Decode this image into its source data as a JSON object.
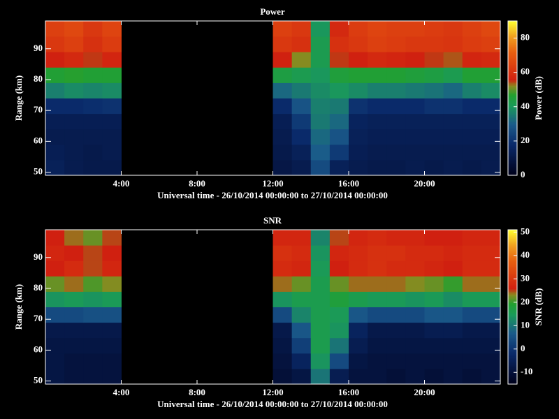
{
  "chart_data": [
    {
      "type": "heatmap",
      "title": "Power",
      "xlabel": "Universal time - 26/10/2014 00:00:00 to 27/10/2014 00:00:00",
      "ylabel": "Range (km)",
      "colorbar_label": "Power (dB)",
      "xlim": [
        0,
        24
      ],
      "xticks": [
        {
          "value": 4,
          "label": "4:00"
        },
        {
          "value": 8,
          "label": "8:00"
        },
        {
          "value": 12,
          "label": "12:00"
        },
        {
          "value": 16,
          "label": "16:00"
        },
        {
          "value": 20,
          "label": "20:00"
        }
      ],
      "ylim": [
        49,
        99
      ],
      "yticks": [
        50,
        60,
        70,
        80,
        90
      ],
      "clim": [
        0,
        90
      ],
      "cticks": [
        0,
        20,
        40,
        60,
        80
      ],
      "colormap": [
        {
          "at": 0,
          "color": "#00001a"
        },
        {
          "at": 0.2,
          "color": "#0a2a6a"
        },
        {
          "at": 0.33,
          "color": "#1a5a8a"
        },
        {
          "at": 0.45,
          "color": "#1a9a5a"
        },
        {
          "at": 0.52,
          "color": "#22a030"
        },
        {
          "at": 0.58,
          "color": "#8a8a20"
        },
        {
          "at": 0.62,
          "color": "#d02010"
        },
        {
          "at": 0.8,
          "color": "#e86010"
        },
        {
          "at": 0.9,
          "color": "#f0a020"
        },
        {
          "at": 1,
          "color": "#ffff30"
        }
      ],
      "xbins": [
        0,
        1,
        2,
        3,
        4,
        5,
        6,
        7,
        8,
        9,
        10,
        11,
        12,
        13,
        14,
        15,
        16,
        17,
        18,
        19,
        20,
        21,
        22,
        23,
        24
      ],
      "ybins": [
        49,
        54,
        59,
        64,
        69,
        74,
        79,
        84,
        89,
        94,
        99
      ],
      "values": [
        [
          14,
          12,
          11,
          11,
          null,
          null,
          null,
          null,
          null,
          null,
          null,
          null,
          10,
          12,
          26,
          14,
          12,
          11,
          11,
          12,
          11,
          12,
          11,
          12
        ],
        [
          13,
          12,
          11,
          12,
          null,
          null,
          null,
          null,
          null,
          null,
          null,
          null,
          11,
          14,
          30,
          22,
          13,
          12,
          12,
          12,
          12,
          12,
          12,
          12
        ],
        [
          12,
          12,
          12,
          12,
          null,
          null,
          null,
          null,
          null,
          null,
          null,
          null,
          12,
          18,
          32,
          28,
          14,
          13,
          13,
          13,
          13,
          13,
          13,
          13
        ],
        [
          13,
          13,
          13,
          13,
          null,
          null,
          null,
          null,
          null,
          null,
          null,
          null,
          13,
          22,
          35,
          32,
          15,
          14,
          14,
          14,
          14,
          14,
          14,
          14
        ],
        [
          18,
          18,
          19,
          20,
          null,
          null,
          null,
          null,
          null,
          null,
          null,
          null,
          18,
          28,
          36,
          35,
          20,
          18,
          18,
          18,
          20,
          20,
          18,
          18
        ],
        [
          36,
          38,
          37,
          38,
          null,
          null,
          null,
          null,
          null,
          null,
          null,
          null,
          32,
          35,
          38,
          40,
          38,
          36,
          36,
          35,
          34,
          32,
          36,
          38
        ],
        [
          46,
          47,
          46,
          46,
          null,
          null,
          null,
          null,
          null,
          null,
          null,
          null,
          44,
          42,
          40,
          45,
          46,
          46,
          46,
          45,
          44,
          42,
          46,
          46
        ],
        [
          56,
          58,
          55,
          57,
          null,
          null,
          null,
          null,
          null,
          null,
          null,
          null,
          56,
          52,
          42,
          55,
          56,
          58,
          57,
          56,
          55,
          54,
          57,
          58
        ],
        [
          62,
          64,
          60,
          63,
          null,
          null,
          null,
          null,
          null,
          null,
          null,
          null,
          62,
          60,
          42,
          60,
          62,
          64,
          63,
          62,
          62,
          61,
          63,
          64
        ],
        [
          64,
          66,
          62,
          65,
          null,
          null,
          null,
          null,
          null,
          null,
          null,
          null,
          64,
          62,
          40,
          58,
          63,
          65,
          64,
          64,
          63,
          62,
          64,
          66
        ]
      ]
    },
    {
      "type": "heatmap",
      "title": "SNR",
      "xlabel": "Universal time - 26/10/2014 00:00:00 to 27/10/2014 00:00:00",
      "ylabel": "Range (km)",
      "colorbar_label": "SNR (dB)",
      "xlim": [
        0,
        24
      ],
      "xticks": [
        {
          "value": 4,
          "label": "4:00"
        },
        {
          "value": 8,
          "label": "8:00"
        },
        {
          "value": 12,
          "label": "12:00"
        },
        {
          "value": 16,
          "label": "16:00"
        },
        {
          "value": 20,
          "label": "20:00"
        }
      ],
      "ylim": [
        49,
        99
      ],
      "yticks": [
        50,
        60,
        70,
        80,
        90
      ],
      "clim": [
        -15,
        51
      ],
      "cticks": [
        -10,
        0,
        10,
        20,
        30,
        40,
        50
      ],
      "colormap": [
        {
          "at": 0,
          "color": "#00001a"
        },
        {
          "at": 0.2,
          "color": "#0a2a6a"
        },
        {
          "at": 0.33,
          "color": "#1a5a8a"
        },
        {
          "at": 0.45,
          "color": "#1a9a5a"
        },
        {
          "at": 0.52,
          "color": "#22a030"
        },
        {
          "at": 0.58,
          "color": "#8a8a20"
        },
        {
          "at": 0.62,
          "color": "#d02010"
        },
        {
          "at": 0.8,
          "color": "#e86010"
        },
        {
          "at": 0.9,
          "color": "#f0a020"
        },
        {
          "at": 1,
          "color": "#ffff30"
        }
      ],
      "xbins": [
        0,
        1,
        2,
        3,
        4,
        5,
        6,
        7,
        8,
        9,
        10,
        11,
        12,
        13,
        14,
        15,
        16,
        17,
        18,
        19,
        20,
        21,
        22,
        23,
        24
      ],
      "ybins": [
        49,
        54,
        59,
        64,
        69,
        74,
        79,
        84,
        89,
        94,
        99
      ],
      "values": [
        [
          -8,
          -9,
          -9,
          -9,
          null,
          null,
          null,
          null,
          null,
          null,
          null,
          null,
          -10,
          -8,
          10,
          -6,
          -9,
          -9,
          -10,
          -9,
          -10,
          -9,
          -10,
          -9
        ],
        [
          -8,
          -9,
          -9,
          -9,
          null,
          null,
          null,
          null,
          null,
          null,
          null,
          null,
          -9,
          -4,
          14,
          4,
          -8,
          -9,
          -9,
          -9,
          -9,
          -9,
          -9,
          -9
        ],
        [
          -8,
          -8,
          -8,
          -8,
          null,
          null,
          null,
          null,
          null,
          null,
          null,
          null,
          -8,
          2,
          16,
          10,
          -6,
          -8,
          -8,
          -8,
          -8,
          -8,
          -8,
          -8
        ],
        [
          -7,
          -7,
          -7,
          -7,
          null,
          null,
          null,
          null,
          null,
          null,
          null,
          null,
          -7,
          6,
          16,
          14,
          -4,
          -7,
          -7,
          -7,
          -6,
          -6,
          -7,
          -7
        ],
        [
          4,
          4,
          5,
          5,
          null,
          null,
          null,
          null,
          null,
          null,
          null,
          null,
          4,
          12,
          16,
          15,
          6,
          4,
          4,
          4,
          6,
          6,
          4,
          4
        ],
        [
          14,
          15,
          14,
          15,
          null,
          null,
          null,
          null,
          null,
          null,
          null,
          null,
          14,
          16,
          16,
          18,
          16,
          15,
          15,
          14,
          15,
          13,
          15,
          15
        ],
        [
          22,
          24,
          21,
          23,
          null,
          null,
          null,
          null,
          null,
          null,
          null,
          null,
          24,
          22,
          16,
          22,
          24,
          24,
          24,
          23,
          22,
          20,
          24,
          24
        ],
        [
          26,
          28,
          25,
          27,
          null,
          null,
          null,
          null,
          null,
          null,
          null,
          null,
          28,
          27,
          15,
          26,
          28,
          29,
          28,
          28,
          27,
          26,
          28,
          28
        ],
        [
          27,
          26,
          25,
          26,
          null,
          null,
          null,
          null,
          null,
          null,
          null,
          null,
          29,
          28,
          14,
          27,
          28,
          29,
          29,
          28,
          28,
          27,
          28,
          28
        ],
        [
          26,
          24,
          22,
          25,
          null,
          null,
          null,
          null,
          null,
          null,
          null,
          null,
          27,
          27,
          12,
          25,
          27,
          28,
          27,
          27,
          26,
          26,
          27,
          27
        ]
      ]
    }
  ]
}
